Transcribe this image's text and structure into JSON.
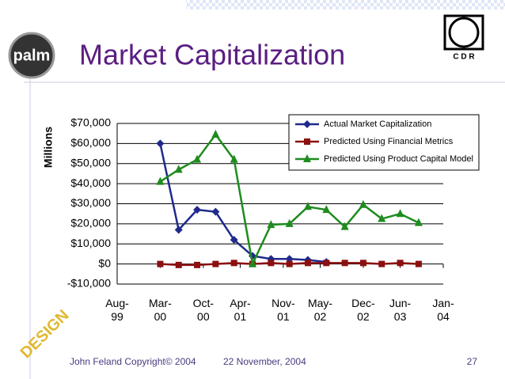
{
  "logos": {
    "palm": "palm",
    "cdr": "C D R",
    "design": "DESIGN"
  },
  "footer": {
    "author": "John Feland Copyright© 2004",
    "date": "22 November, 2004",
    "page": "27"
  },
  "chart_data": {
    "type": "line",
    "title": "Market Capitalization",
    "y_label": "Millions",
    "x": [
      "2000-03",
      "2000-06",
      "2000-09",
      "2000-12",
      "2001-03",
      "2001-06",
      "2001-09",
      "2001-12",
      "2002-03",
      "2002-06",
      "2002-09",
      "2002-12",
      "2003-03",
      "2003-06",
      "2003-09"
    ],
    "xlim": [
      "1999-08",
      "2004-01"
    ],
    "xticks": [
      {
        "value": "1999-08",
        "label": "Aug-99"
      },
      {
        "value": "2000-03",
        "label": "Mar-00"
      },
      {
        "value": "2000-10",
        "label": "Oct-00"
      },
      {
        "value": "2001-04",
        "label": "Apr-01"
      },
      {
        "value": "2001-11",
        "label": "Nov-01"
      },
      {
        "value": "2002-05",
        "label": "May-02"
      },
      {
        "value": "2002-12",
        "label": "Dec-02"
      },
      {
        "value": "2003-06",
        "label": "Jun-03"
      },
      {
        "value": "2004-01",
        "label": "Jan-04"
      }
    ],
    "ylim": [
      -10000,
      70000
    ],
    "yticks": [
      {
        "value": -10000,
        "label": "-$10,000"
      },
      {
        "value": 0,
        "label": "$0"
      },
      {
        "value": 10000,
        "label": "$10,000"
      },
      {
        "value": 20000,
        "label": "$20,000"
      },
      {
        "value": 30000,
        "label": "$30,000"
      },
      {
        "value": 40000,
        "label": "$40,000"
      },
      {
        "value": 50000,
        "label": "$50,000"
      },
      {
        "value": 60000,
        "label": "$60,000"
      },
      {
        "value": 70000,
        "label": "$70,000"
      }
    ],
    "grid": true,
    "legend": "top-right",
    "series": [
      {
        "name": "Actual Market Capitalization",
        "color": "#1f2a8c",
        "marker": "diamond",
        "values": [
          60000,
          17000,
          27000,
          26000,
          12000,
          4000,
          2500,
          2500,
          2000,
          1000,
          null,
          null,
          null,
          null,
          null
        ]
      },
      {
        "name": "Predicted Using Financial Metrics",
        "color": "#8b1010",
        "marker": "square",
        "values": [
          0,
          -500,
          -500,
          0,
          500,
          0,
          500,
          0,
          500,
          500,
          500,
          500,
          0,
          500,
          0
        ]
      },
      {
        "name": "Predicted Using Product Capital Model",
        "color": "#1e8c1e",
        "marker": "triangle",
        "values": [
          41000,
          47000,
          52000,
          64500,
          52000,
          0,
          19500,
          20000,
          28500,
          27000,
          18500,
          29500,
          22500,
          25000,
          20500
        ]
      }
    ]
  }
}
